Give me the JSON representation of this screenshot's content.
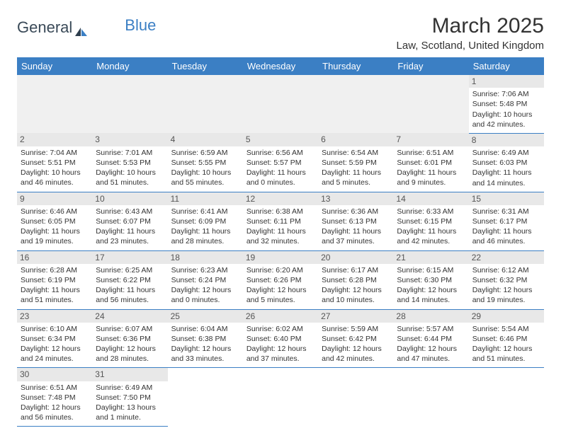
{
  "header": {
    "logo_part1": "General",
    "logo_part2": "Blue",
    "month_title": "March 2025",
    "location": "Law, Scotland, United Kingdom"
  },
  "colors": {
    "header_bg": "#3b7fc4",
    "header_text": "#ffffff",
    "daynum_bg": "#e8e8e8",
    "border": "#3b7fc4",
    "logo_dark": "#3a4a58",
    "logo_blue": "#3b7fc4"
  },
  "day_headers": [
    "Sunday",
    "Monday",
    "Tuesday",
    "Wednesday",
    "Thursday",
    "Friday",
    "Saturday"
  ],
  "weeks": [
    [
      null,
      null,
      null,
      null,
      null,
      null,
      {
        "n": "1",
        "sr": "Sunrise: 7:06 AM",
        "ss": "Sunset: 5:48 PM",
        "d1": "Daylight: 10 hours",
        "d2": "and 42 minutes."
      }
    ],
    [
      {
        "n": "2",
        "sr": "Sunrise: 7:04 AM",
        "ss": "Sunset: 5:51 PM",
        "d1": "Daylight: 10 hours",
        "d2": "and 46 minutes."
      },
      {
        "n": "3",
        "sr": "Sunrise: 7:01 AM",
        "ss": "Sunset: 5:53 PM",
        "d1": "Daylight: 10 hours",
        "d2": "and 51 minutes."
      },
      {
        "n": "4",
        "sr": "Sunrise: 6:59 AM",
        "ss": "Sunset: 5:55 PM",
        "d1": "Daylight: 10 hours",
        "d2": "and 55 minutes."
      },
      {
        "n": "5",
        "sr": "Sunrise: 6:56 AM",
        "ss": "Sunset: 5:57 PM",
        "d1": "Daylight: 11 hours",
        "d2": "and 0 minutes."
      },
      {
        "n": "6",
        "sr": "Sunrise: 6:54 AM",
        "ss": "Sunset: 5:59 PM",
        "d1": "Daylight: 11 hours",
        "d2": "and 5 minutes."
      },
      {
        "n": "7",
        "sr": "Sunrise: 6:51 AM",
        "ss": "Sunset: 6:01 PM",
        "d1": "Daylight: 11 hours",
        "d2": "and 9 minutes."
      },
      {
        "n": "8",
        "sr": "Sunrise: 6:49 AM",
        "ss": "Sunset: 6:03 PM",
        "d1": "Daylight: 11 hours",
        "d2": "and 14 minutes."
      }
    ],
    [
      {
        "n": "9",
        "sr": "Sunrise: 6:46 AM",
        "ss": "Sunset: 6:05 PM",
        "d1": "Daylight: 11 hours",
        "d2": "and 19 minutes."
      },
      {
        "n": "10",
        "sr": "Sunrise: 6:43 AM",
        "ss": "Sunset: 6:07 PM",
        "d1": "Daylight: 11 hours",
        "d2": "and 23 minutes."
      },
      {
        "n": "11",
        "sr": "Sunrise: 6:41 AM",
        "ss": "Sunset: 6:09 PM",
        "d1": "Daylight: 11 hours",
        "d2": "and 28 minutes."
      },
      {
        "n": "12",
        "sr": "Sunrise: 6:38 AM",
        "ss": "Sunset: 6:11 PM",
        "d1": "Daylight: 11 hours",
        "d2": "and 32 minutes."
      },
      {
        "n": "13",
        "sr": "Sunrise: 6:36 AM",
        "ss": "Sunset: 6:13 PM",
        "d1": "Daylight: 11 hours",
        "d2": "and 37 minutes."
      },
      {
        "n": "14",
        "sr": "Sunrise: 6:33 AM",
        "ss": "Sunset: 6:15 PM",
        "d1": "Daylight: 11 hours",
        "d2": "and 42 minutes."
      },
      {
        "n": "15",
        "sr": "Sunrise: 6:31 AM",
        "ss": "Sunset: 6:17 PM",
        "d1": "Daylight: 11 hours",
        "d2": "and 46 minutes."
      }
    ],
    [
      {
        "n": "16",
        "sr": "Sunrise: 6:28 AM",
        "ss": "Sunset: 6:19 PM",
        "d1": "Daylight: 11 hours",
        "d2": "and 51 minutes."
      },
      {
        "n": "17",
        "sr": "Sunrise: 6:25 AM",
        "ss": "Sunset: 6:22 PM",
        "d1": "Daylight: 11 hours",
        "d2": "and 56 minutes."
      },
      {
        "n": "18",
        "sr": "Sunrise: 6:23 AM",
        "ss": "Sunset: 6:24 PM",
        "d1": "Daylight: 12 hours",
        "d2": "and 0 minutes."
      },
      {
        "n": "19",
        "sr": "Sunrise: 6:20 AM",
        "ss": "Sunset: 6:26 PM",
        "d1": "Daylight: 12 hours",
        "d2": "and 5 minutes."
      },
      {
        "n": "20",
        "sr": "Sunrise: 6:17 AM",
        "ss": "Sunset: 6:28 PM",
        "d1": "Daylight: 12 hours",
        "d2": "and 10 minutes."
      },
      {
        "n": "21",
        "sr": "Sunrise: 6:15 AM",
        "ss": "Sunset: 6:30 PM",
        "d1": "Daylight: 12 hours",
        "d2": "and 14 minutes."
      },
      {
        "n": "22",
        "sr": "Sunrise: 6:12 AM",
        "ss": "Sunset: 6:32 PM",
        "d1": "Daylight: 12 hours",
        "d2": "and 19 minutes."
      }
    ],
    [
      {
        "n": "23",
        "sr": "Sunrise: 6:10 AM",
        "ss": "Sunset: 6:34 PM",
        "d1": "Daylight: 12 hours",
        "d2": "and 24 minutes."
      },
      {
        "n": "24",
        "sr": "Sunrise: 6:07 AM",
        "ss": "Sunset: 6:36 PM",
        "d1": "Daylight: 12 hours",
        "d2": "and 28 minutes."
      },
      {
        "n": "25",
        "sr": "Sunrise: 6:04 AM",
        "ss": "Sunset: 6:38 PM",
        "d1": "Daylight: 12 hours",
        "d2": "and 33 minutes."
      },
      {
        "n": "26",
        "sr": "Sunrise: 6:02 AM",
        "ss": "Sunset: 6:40 PM",
        "d1": "Daylight: 12 hours",
        "d2": "and 37 minutes."
      },
      {
        "n": "27",
        "sr": "Sunrise: 5:59 AM",
        "ss": "Sunset: 6:42 PM",
        "d1": "Daylight: 12 hours",
        "d2": "and 42 minutes."
      },
      {
        "n": "28",
        "sr": "Sunrise: 5:57 AM",
        "ss": "Sunset: 6:44 PM",
        "d1": "Daylight: 12 hours",
        "d2": "and 47 minutes."
      },
      {
        "n": "29",
        "sr": "Sunrise: 5:54 AM",
        "ss": "Sunset: 6:46 PM",
        "d1": "Daylight: 12 hours",
        "d2": "and 51 minutes."
      }
    ],
    [
      {
        "n": "30",
        "sr": "Sunrise: 6:51 AM",
        "ss": "Sunset: 7:48 PM",
        "d1": "Daylight: 12 hours",
        "d2": "and 56 minutes."
      },
      {
        "n": "31",
        "sr": "Sunrise: 6:49 AM",
        "ss": "Sunset: 7:50 PM",
        "d1": "Daylight: 13 hours",
        "d2": "and 1 minute."
      },
      null,
      null,
      null,
      null,
      null
    ]
  ]
}
